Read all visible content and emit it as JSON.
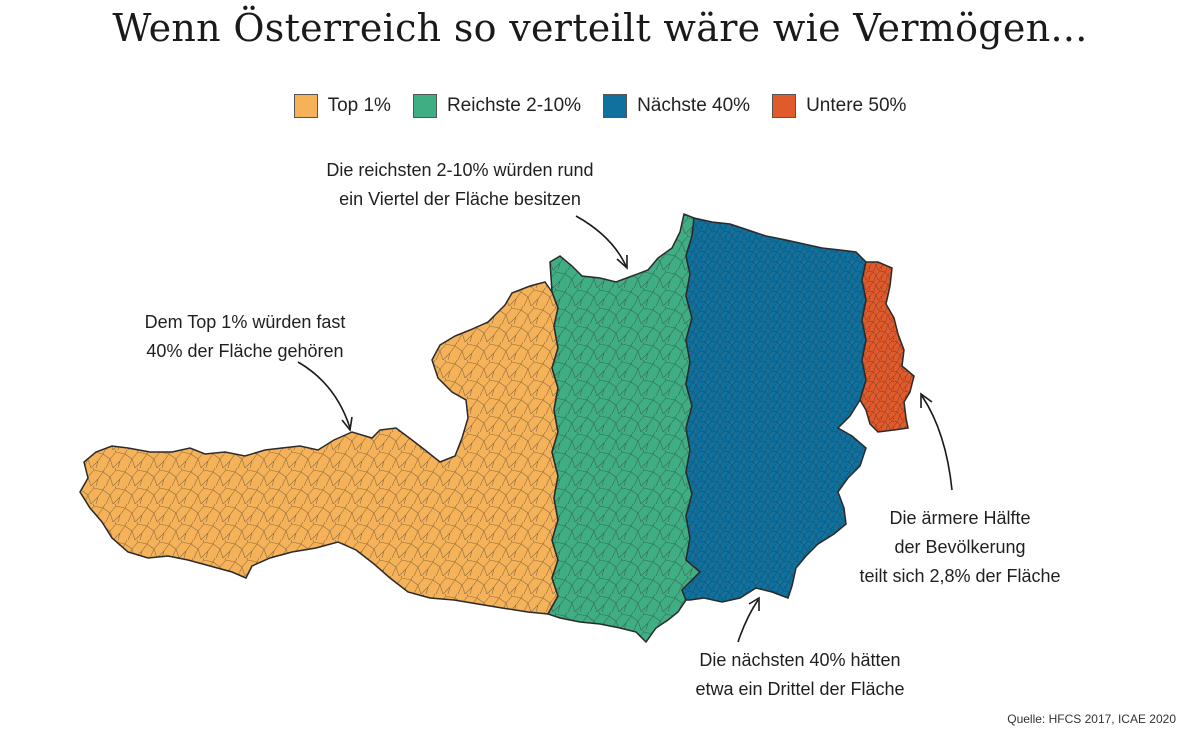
{
  "title": "Wenn Österreich so verteilt wäre wie Vermögen...",
  "legend": [
    {
      "label": "Top 1%",
      "color": "#f6b258"
    },
    {
      "label": "Reichste 2-10%",
      "color": "#3fae82"
    },
    {
      "label": "Nächste 40%",
      "color": "#10719e"
    },
    {
      "label": "Untere 50%",
      "color": "#e05a2b"
    }
  ],
  "annotations": {
    "top1": [
      "Dem Top 1% würden fast",
      "40% der Fläche gehören"
    ],
    "reichste": [
      "Die reichsten 2-10% würden rund",
      "ein Viertel der Fläche besitzen"
    ],
    "naechste": [
      "Die nächsten 40% hätten",
      "etwa ein Drittel der Fläche"
    ],
    "untere": [
      "Die ärmere Hälfte",
      "der Bevölkerung",
      "teilt sich 2,8% der Fläche"
    ]
  },
  "source": "Quelle: HFCS 2017, ICAE 2020",
  "map": {
    "region_colors": {
      "top1": "#f6b258",
      "reichste": "#3fae82",
      "naechste": "#10719e",
      "untere": "#e05a2b"
    },
    "outline_color": "#2a2a2a"
  }
}
